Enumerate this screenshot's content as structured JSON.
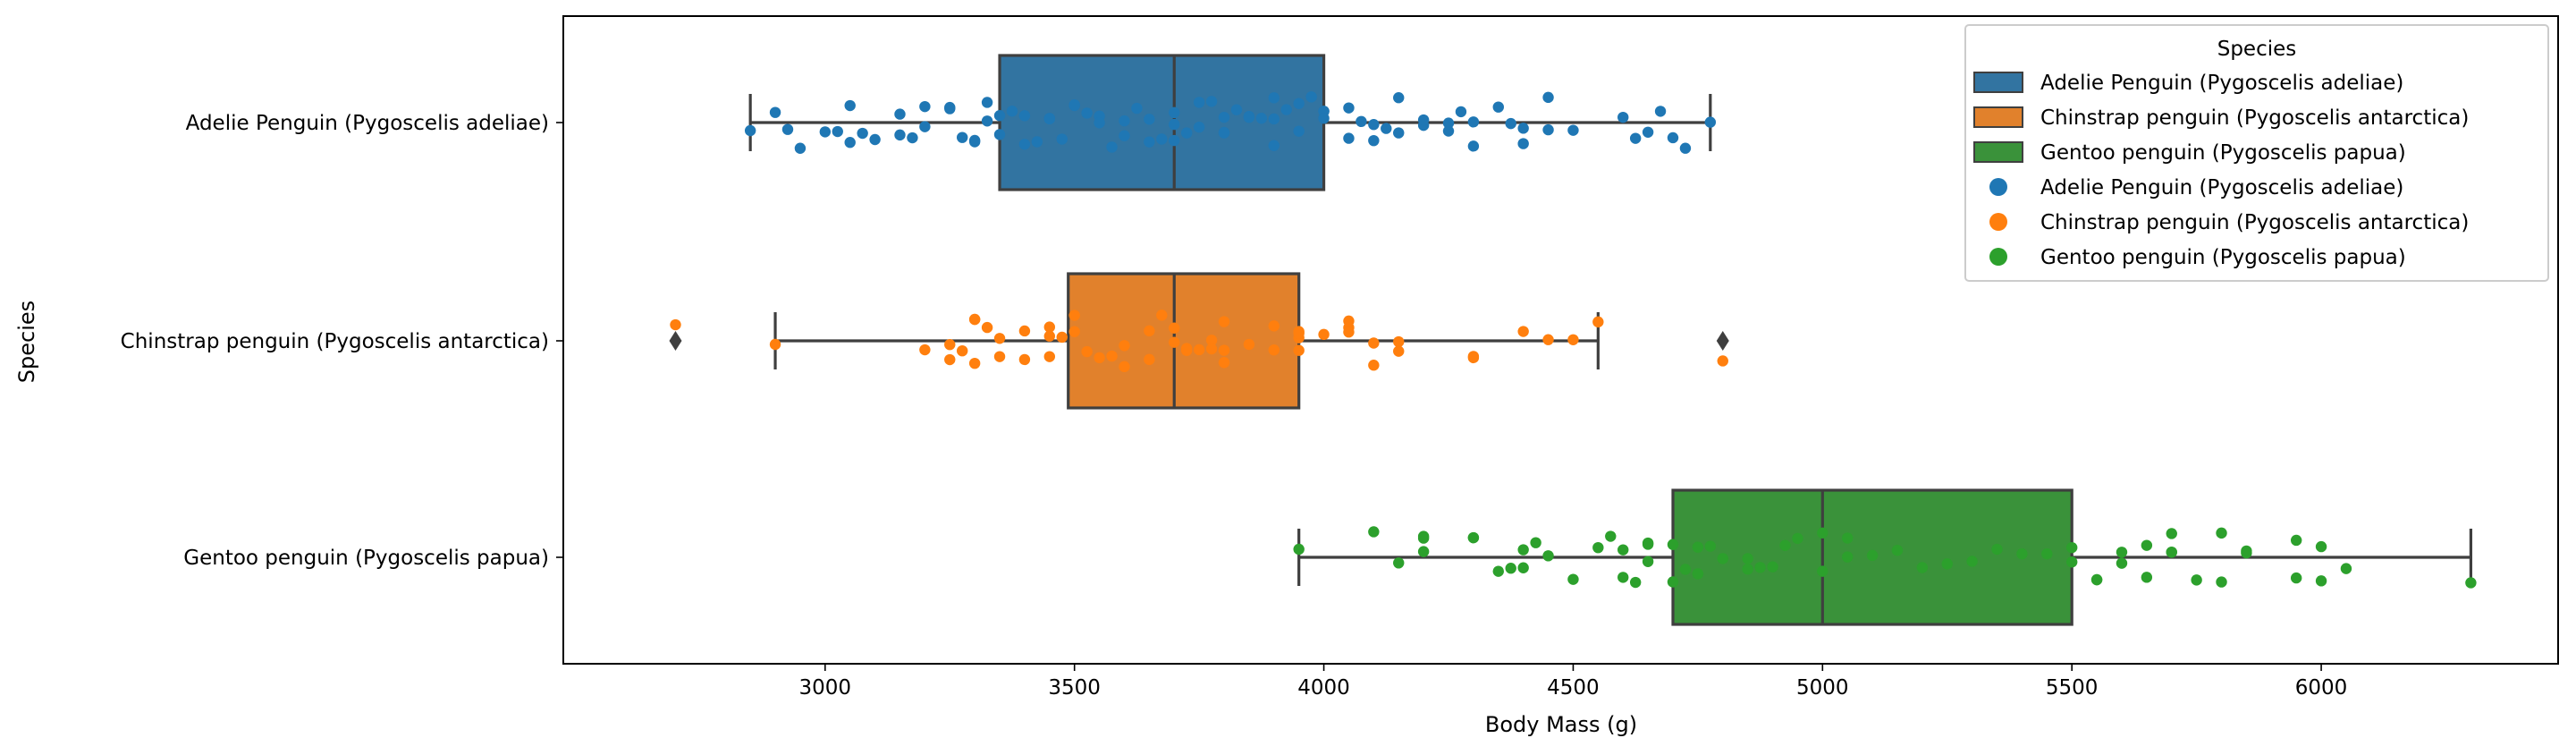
{
  "chart_data": {
    "type": "box",
    "xlabel": "Body Mass (g)",
    "ylabel": "Species",
    "xlim": [
      2475,
      6475
    ],
    "xticks": [
      3000,
      3500,
      4000,
      4500,
      5000,
      5500,
      6000
    ],
    "categories": [
      "Adelie Penguin (Pygoscelis adeliae)",
      "Chinstrap penguin (Pygoscelis antarctica)",
      "Gentoo penguin (Pygoscelis papua)"
    ],
    "colors": [
      "#3274a1",
      "#e1812c",
      "#3a923a"
    ],
    "point_colors": [
      "#1f77b4",
      "#ff7f0e",
      "#2ca02c"
    ],
    "boxes": [
      {
        "whisker_low": 2850,
        "q1": 3350,
        "median": 3700,
        "q3": 4000,
        "whisker_high": 4775,
        "outliers": []
      },
      {
        "whisker_low": 2900,
        "q1": 3487.5,
        "median": 3700,
        "q3": 3950,
        "whisker_high": 4550,
        "outliers": [
          2700,
          4800
        ]
      },
      {
        "whisker_low": 3950,
        "q1": 4700,
        "median": 5000,
        "q3": 5500,
        "whisker_high": 6300,
        "outliers": []
      }
    ],
    "points": [
      [
        2850,
        2900,
        2925,
        2950,
        3000,
        3025,
        3050,
        3050,
        3075,
        3100,
        3150,
        3150,
        3175,
        3200,
        3200,
        3250,
        3250,
        3275,
        3300,
        3300,
        3325,
        3325,
        3350,
        3350,
        3375,
        3400,
        3400,
        3425,
        3450,
        3450,
        3475,
        3500,
        3500,
        3525,
        3550,
        3550,
        3575,
        3600,
        3600,
        3625,
        3650,
        3650,
        3675,
        3700,
        3700,
        3700,
        3725,
        3750,
        3750,
        3775,
        3800,
        3800,
        3800,
        3825,
        3850,
        3850,
        3875,
        3900,
        3900,
        3900,
        3925,
        3950,
        3950,
        3975,
        4000,
        4000,
        4000,
        4050,
        4050,
        4075,
        4100,
        4100,
        4125,
        4150,
        4150,
        4200,
        4200,
        4250,
        4250,
        4275,
        4300,
        4300,
        4350,
        4375,
        4400,
        4400,
        4450,
        4450,
        4500,
        4600,
        4625,
        4650,
        4675,
        4700,
        4725,
        4775
      ],
      [
        2700,
        2900,
        3200,
        3250,
        3250,
        3275,
        3300,
        3300,
        3300,
        3325,
        3350,
        3350,
        3400,
        3400,
        3450,
        3450,
        3450,
        3475,
        3500,
        3500,
        3525,
        3550,
        3575,
        3600,
        3600,
        3650,
        3650,
        3675,
        3700,
        3700,
        3725,
        3725,
        3750,
        3775,
        3775,
        3800,
        3800,
        3800,
        3850,
        3900,
        3900,
        3950,
        3950,
        3950,
        3950,
        4000,
        4050,
        4050,
        4050,
        4100,
        4100,
        4150,
        4150,
        4300,
        4300,
        4400,
        4450,
        4500,
        4550,
        4800
      ],
      [
        3950,
        4100,
        4150,
        4200,
        4200,
        4200,
        4300,
        4300,
        4350,
        4375,
        4400,
        4400,
        4425,
        4450,
        4500,
        4550,
        4575,
        4600,
        4600,
        4625,
        4650,
        4650,
        4650,
        4700,
        4700,
        4725,
        4750,
        4750,
        4775,
        4800,
        4850,
        4850,
        4875,
        4900,
        4925,
        4950,
        5000,
        5000,
        5050,
        5050,
        5100,
        5150,
        5200,
        5250,
        5300,
        5350,
        5400,
        5450,
        5500,
        5500,
        5550,
        5550,
        5600,
        5600,
        5650,
        5650,
        5700,
        5700,
        5700,
        5750,
        5800,
        5800,
        5850,
        5850,
        5950,
        5950,
        6000,
        6000,
        6050,
        6300
      ]
    ],
    "legend": {
      "title": "Species",
      "placement": "top-right",
      "items": [
        {
          "kind": "patch",
          "label": "Adelie Penguin (Pygoscelis adeliae)",
          "color": "#3274a1"
        },
        {
          "kind": "patch",
          "label": "Chinstrap penguin (Pygoscelis antarctica)",
          "color": "#e1812c"
        },
        {
          "kind": "patch",
          "label": "Gentoo penguin (Pygoscelis papua)",
          "color": "#3a923a"
        },
        {
          "kind": "marker",
          "label": "Adelie Penguin (Pygoscelis adeliae)",
          "color": "#1f77b4"
        },
        {
          "kind": "marker",
          "label": "Chinstrap penguin (Pygoscelis antarctica)",
          "color": "#ff7f0e"
        },
        {
          "kind": "marker",
          "label": "Gentoo penguin (Pygoscelis papua)",
          "color": "#2ca02c"
        }
      ]
    }
  }
}
